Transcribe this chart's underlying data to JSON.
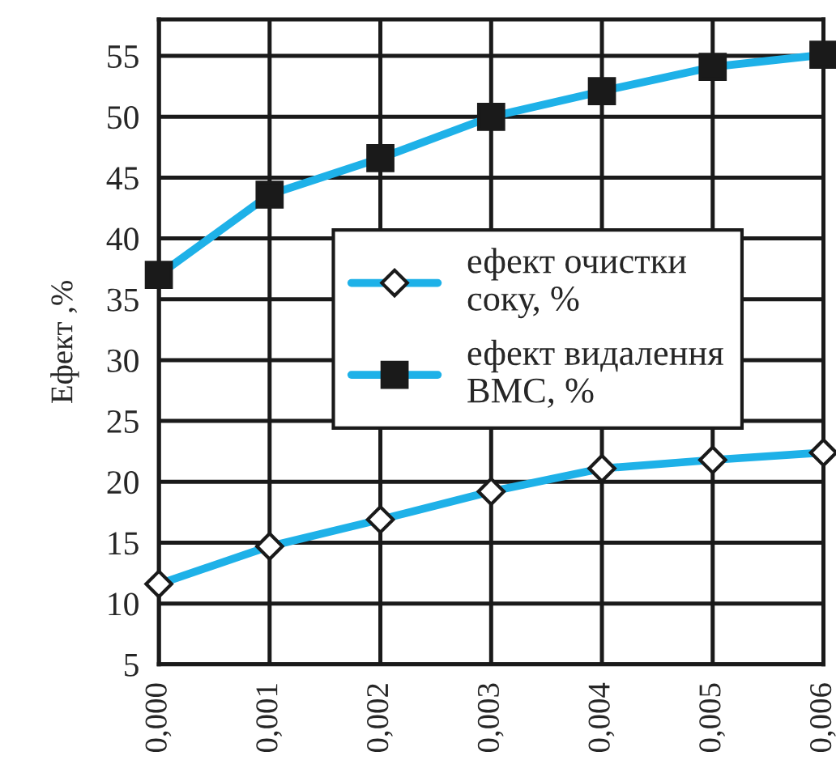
{
  "chart_data": {
    "type": "line",
    "ylabel": "Ефект ,%",
    "x": [
      0,
      0.001,
      0.002,
      0.003,
      0.004,
      0.005,
      0.006
    ],
    "xlim": [
      0,
      0.006
    ],
    "xticks": [
      {
        "value": 0,
        "label": "0,000"
      },
      {
        "value": 0.001,
        "label": "0,001"
      },
      {
        "value": 0.002,
        "label": "0,002"
      },
      {
        "value": 0.003,
        "label": "0,003"
      },
      {
        "value": 0.004,
        "label": "0,004"
      },
      {
        "value": 0.005,
        "label": "0,005"
      },
      {
        "value": 0.006,
        "label": "0,006"
      }
    ],
    "ylim": [
      5,
      58
    ],
    "yticks": [
      5,
      10,
      15,
      20,
      25,
      30,
      35,
      40,
      45,
      50,
      55
    ],
    "grid": true,
    "legend": "center",
    "line_style": "solid",
    "series": [
      {
        "name": "ефект очистки\nсоку, %",
        "color": "#1eb1e8",
        "marker": "diamond",
        "values": [
          11.6,
          14.7,
          16.9,
          19.2,
          21.1,
          21.8,
          22.4
        ]
      },
      {
        "name": "ефект видалення\nВМС, %",
        "color": "#1eb1e8",
        "marker": "square",
        "values": [
          37,
          43.6,
          46.6,
          50,
          52.1,
          54.1,
          55.1
        ]
      }
    ]
  }
}
